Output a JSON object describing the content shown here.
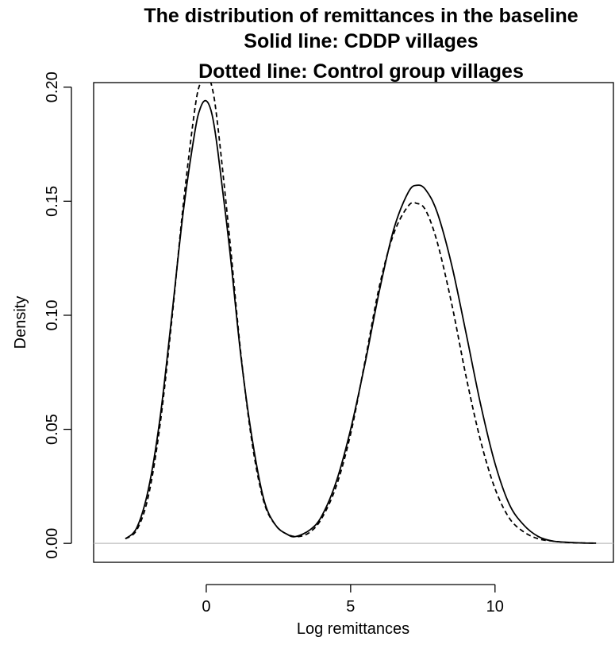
{
  "chart_data": {
    "type": "line",
    "title_lines": [
      "The distribution of remittances in the baseline",
      "Solid line: CDDP villages",
      "Dotted line: Control group villages"
    ],
    "xlabel": "Log remittances",
    "ylabel": "Density",
    "xlim": [
      -3.9,
      14.1
    ],
    "ylim": [
      -0.0083,
      0.202
    ],
    "x_ticks": [
      0,
      5,
      10
    ],
    "x_tick_labels": [
      "0",
      "5",
      "10"
    ],
    "y_ticks": [
      0.0,
      0.05,
      0.1,
      0.15,
      0.2
    ],
    "y_tick_labels": [
      "0.00",
      "0.05",
      "0.10",
      "0.15",
      "0.20"
    ],
    "grid": false,
    "legend": "none",
    "reference_line": {
      "y": 0,
      "color": "#bebebe"
    },
    "series": [
      {
        "style": "solid",
        "color": "#000000",
        "x": [
          -2.8,
          -2.4,
          -2.0,
          -1.6,
          -1.2,
          -0.8,
          -0.4,
          -0.2,
          0.0,
          0.2,
          0.4,
          0.8,
          1.2,
          1.6,
          2.0,
          2.4,
          2.8,
          3.1,
          3.6,
          4.0,
          4.5,
          5.0,
          5.5,
          6.0,
          6.5,
          7.0,
          7.3,
          7.6,
          8.0,
          8.5,
          9.0,
          9.5,
          10.0,
          10.5,
          11.0,
          11.5,
          12.0,
          12.5,
          13.0,
          13.5
        ],
        "y": [
          0.002,
          0.007,
          0.024,
          0.055,
          0.099,
          0.145,
          0.18,
          0.191,
          0.194,
          0.188,
          0.172,
          0.13,
          0.082,
          0.045,
          0.019,
          0.008,
          0.004,
          0.003,
          0.006,
          0.012,
          0.027,
          0.05,
          0.079,
          0.111,
          0.138,
          0.154,
          0.157,
          0.155,
          0.145,
          0.122,
          0.092,
          0.061,
          0.035,
          0.017,
          0.008,
          0.003,
          0.001,
          0.0005,
          0.0002,
          0.0001
        ]
      },
      {
        "style": "dashed",
        "color": "#000000",
        "x": [
          -2.8,
          -2.4,
          -2.0,
          -1.6,
          -1.2,
          -0.8,
          -0.4,
          -0.2,
          0.0,
          0.2,
          0.4,
          0.8,
          1.2,
          1.6,
          2.0,
          2.4,
          2.8,
          3.2,
          3.6,
          4.0,
          4.5,
          5.0,
          5.5,
          6.0,
          6.5,
          7.0,
          7.3,
          7.6,
          8.0,
          8.5,
          9.0,
          9.5,
          10.0,
          10.5,
          11.0,
          11.5,
          12.0,
          12.5,
          13.0,
          13.5
        ],
        "y": [
          0.002,
          0.006,
          0.021,
          0.052,
          0.097,
          0.148,
          0.19,
          0.202,
          0.205,
          0.2,
          0.183,
          0.135,
          0.083,
          0.043,
          0.018,
          0.008,
          0.004,
          0.003,
          0.005,
          0.011,
          0.025,
          0.048,
          0.08,
          0.113,
          0.136,
          0.148,
          0.149,
          0.146,
          0.132,
          0.105,
          0.073,
          0.045,
          0.024,
          0.011,
          0.005,
          0.002,
          0.001,
          0.0004,
          0.0002,
          0.0001
        ]
      }
    ]
  }
}
